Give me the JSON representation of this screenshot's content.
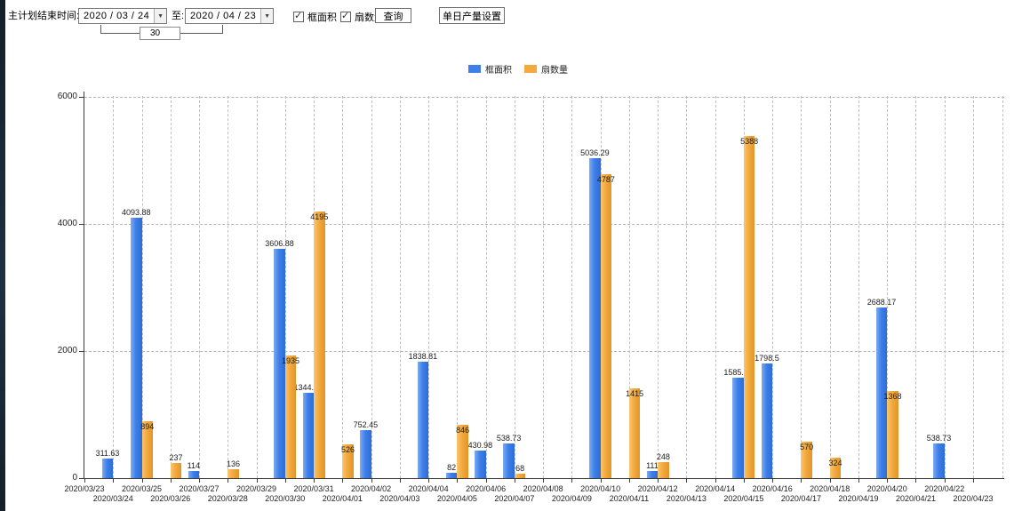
{
  "toolbar": {
    "main_label": "主计划结束时间:",
    "date_from": "2020 / 03 / 24",
    "to_label": "至:",
    "date_to": "2020 / 04 / 23",
    "days_between": "30",
    "checkbox_frame_area": {
      "label": "框面积",
      "checked": true
    },
    "checkbox_fan_count": {
      "label": "扇数量",
      "checked": true
    },
    "query_button": "查询",
    "daily_output_button": "单日产量设置"
  },
  "legend": {
    "items": [
      {
        "label": "框面积",
        "color": "#3d80e9"
      },
      {
        "label": "扇数量",
        "color": "#f3a93c"
      }
    ]
  },
  "chart_data": {
    "type": "bar",
    "title": "",
    "xlabel": "",
    "ylabel": "",
    "ylim": [
      0,
      6000
    ],
    "yticks": [
      0,
      2000,
      4000,
      6000
    ],
    "grid": "dashed",
    "legend_position": "top",
    "staggered_x_labels": true,
    "categories": [
      "2020/03/23",
      "2020/03/24",
      "2020/03/25",
      "2020/03/26",
      "2020/03/27",
      "2020/03/28",
      "2020/03/29",
      "2020/03/30",
      "2020/03/31",
      "2020/04/01",
      "2020/04/02",
      "2020/04/03",
      "2020/04/04",
      "2020/04/05",
      "2020/04/06",
      "2020/04/07",
      "2020/04/08",
      "2020/04/09",
      "2020/04/10",
      "2020/04/11",
      "2020/04/12",
      "2020/04/13",
      "2020/04/14",
      "2020/04/15",
      "2020/04/16",
      "2020/04/17",
      "2020/04/18",
      "2020/04/19",
      "2020/04/20",
      "2020/04/21",
      "2020/04/22",
      "2020/04/23"
    ],
    "series": [
      {
        "name": "框面积",
        "color": "#3d80e9",
        "values": [
          null,
          311.63,
          4093.88,
          null,
          114,
          null,
          null,
          3606.88,
          1344.95,
          null,
          752.45,
          null,
          1838.81,
          82,
          430.98,
          538.73,
          null,
          null,
          5036.29,
          null,
          111,
          null,
          null,
          1585.96,
          1798.5,
          null,
          null,
          null,
          2688.17,
          null,
          538.73,
          null
        ]
      },
      {
        "name": "扇数量",
        "color": "#f3a93c",
        "values": [
          null,
          null,
          894,
          237,
          null,
          136,
          null,
          1935,
          4195,
          526,
          null,
          null,
          null,
          846,
          null,
          68,
          null,
          null,
          4787,
          1415,
          248,
          null,
          null,
          5388,
          null,
          570,
          324,
          null,
          1368,
          null,
          null,
          null
        ]
      }
    ]
  }
}
